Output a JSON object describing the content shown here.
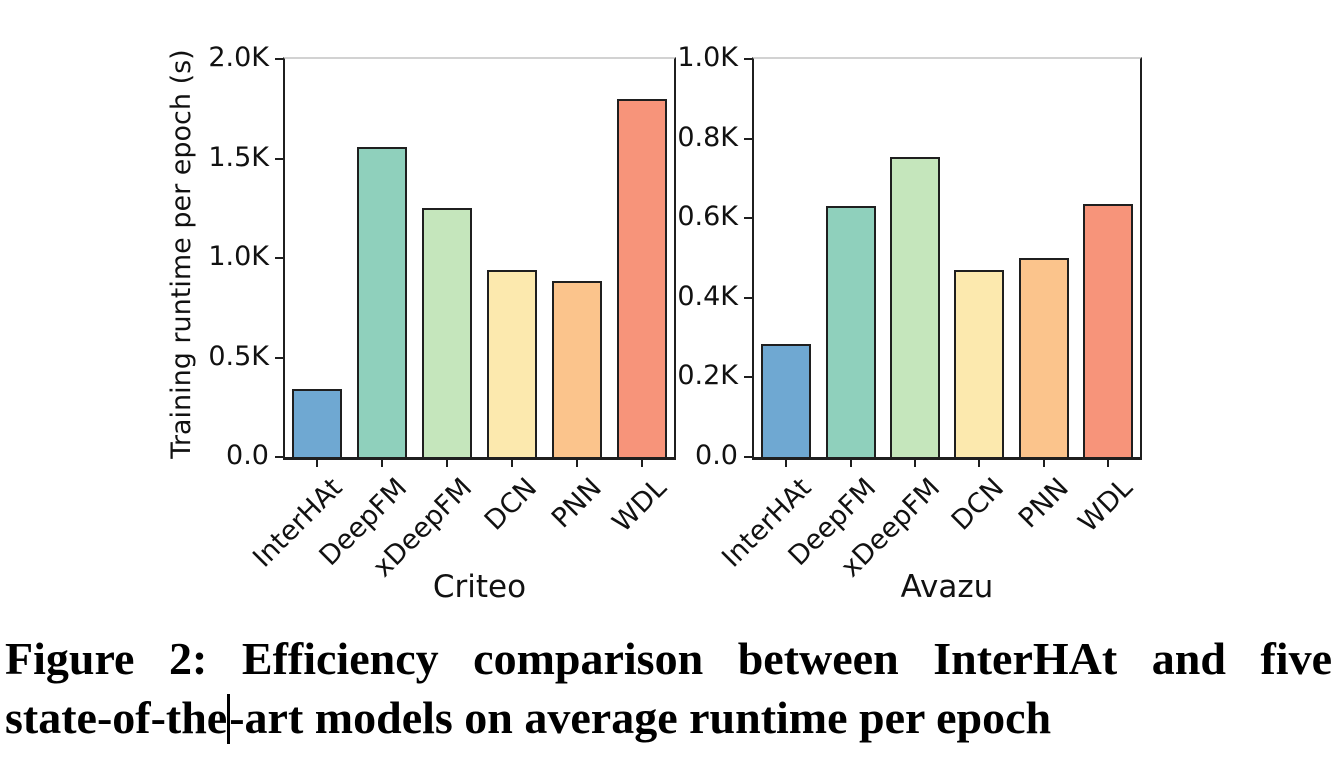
{
  "figure": {
    "y_axis_label": "Training runtime per epoch (s)",
    "palette": [
      "#6FA8D2",
      "#8FD0BC",
      "#C5E6BC",
      "#FCE9AE",
      "#FBC48C",
      "#F7947A"
    ],
    "bar_edge_color": "#1f1f1f",
    "top_spine_color": "#d2d2d2",
    "spine_color": "#1f1f1f"
  },
  "chart_data": [
    {
      "type": "bar",
      "title": "Criteo",
      "categories": [
        "InterHAt",
        "DeepFM",
        "xDeepFM",
        "DCN",
        "PNN",
        "WDL"
      ],
      "values": [
        340,
        1560,
        1250,
        940,
        885,
        1800
      ],
      "unit": "seconds",
      "ylabel": "Training runtime per epoch (s)",
      "ylim": [
        0,
        2000
      ],
      "yticks": [
        {
          "value": 0,
          "label": "0.0"
        },
        {
          "value": 500,
          "label": "0.5K"
        },
        {
          "value": 1000,
          "label": "1.0K"
        },
        {
          "value": 1500,
          "label": "1.5K"
        },
        {
          "value": 2000,
          "label": "2.0K"
        }
      ],
      "grid": "top line only",
      "legend": "none"
    },
    {
      "type": "bar",
      "title": "Avazu",
      "categories": [
        "InterHAt",
        "DeepFM",
        "xDeepFM",
        "DCN",
        "PNN",
        "WDL"
      ],
      "values": [
        285,
        630,
        755,
        470,
        500,
        635
      ],
      "unit": "seconds",
      "ylabel": "",
      "ylim": [
        0,
        1000
      ],
      "yticks": [
        {
          "value": 0,
          "label": "0.0"
        },
        {
          "value": 200,
          "label": "0.2K"
        },
        {
          "value": 400,
          "label": "0.4K"
        },
        {
          "value": 600,
          "label": "0.6K"
        },
        {
          "value": 800,
          "label": "0.8K"
        },
        {
          "value": 1000,
          "label": "1.0K"
        }
      ],
      "grid": "top line only",
      "legend": "none"
    }
  ],
  "caption": {
    "line1": "Figure 2: Efficiency comparison between InterHAt and five",
    "line2_before_caret": "state-of-the",
    "line2_after_caret": "-art models on average runtime per epoch"
  }
}
